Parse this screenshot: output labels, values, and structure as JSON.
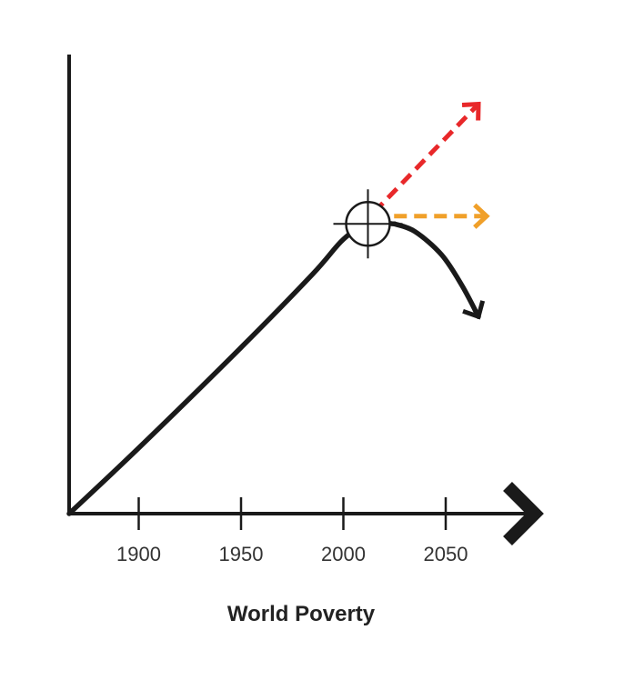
{
  "chart_data": {
    "type": "line",
    "xlabel": "World Poverty",
    "ylabel": "",
    "x_ticks": [
      1900,
      1950,
      2000,
      2050
    ],
    "xlim": [
      1866,
      2100
    ],
    "grid": false,
    "marker": {
      "name": "crosshair",
      "x": 2012
    },
    "series": [
      {
        "id": "historic",
        "style": "solid",
        "color": "#1a1a1a",
        "arrow": false,
        "points": [
          [
            1866,
            0
          ],
          [
            1900,
            17
          ],
          [
            1950,
            43
          ],
          [
            1985,
            62
          ],
          [
            2000,
            71
          ],
          [
            2012,
            75
          ],
          [
            2025,
            75
          ]
        ]
      },
      {
        "id": "projection-decline",
        "style": "solid",
        "color": "#1a1a1a",
        "arrow": true,
        "points": [
          [
            2025,
            75
          ],
          [
            2035,
            73
          ],
          [
            2048,
            67
          ],
          [
            2058,
            59
          ],
          [
            2066,
            51
          ]
        ]
      },
      {
        "id": "projection-flat",
        "style": "dashed",
        "color": "#f0a02a",
        "arrow": true,
        "points": [
          [
            2015,
            77
          ],
          [
            2070,
            77
          ]
        ]
      },
      {
        "id": "projection-rise",
        "style": "dashed",
        "color": "#e8282a",
        "arrow": true,
        "points": [
          [
            2015,
            78
          ],
          [
            2066,
            106
          ]
        ]
      }
    ]
  }
}
